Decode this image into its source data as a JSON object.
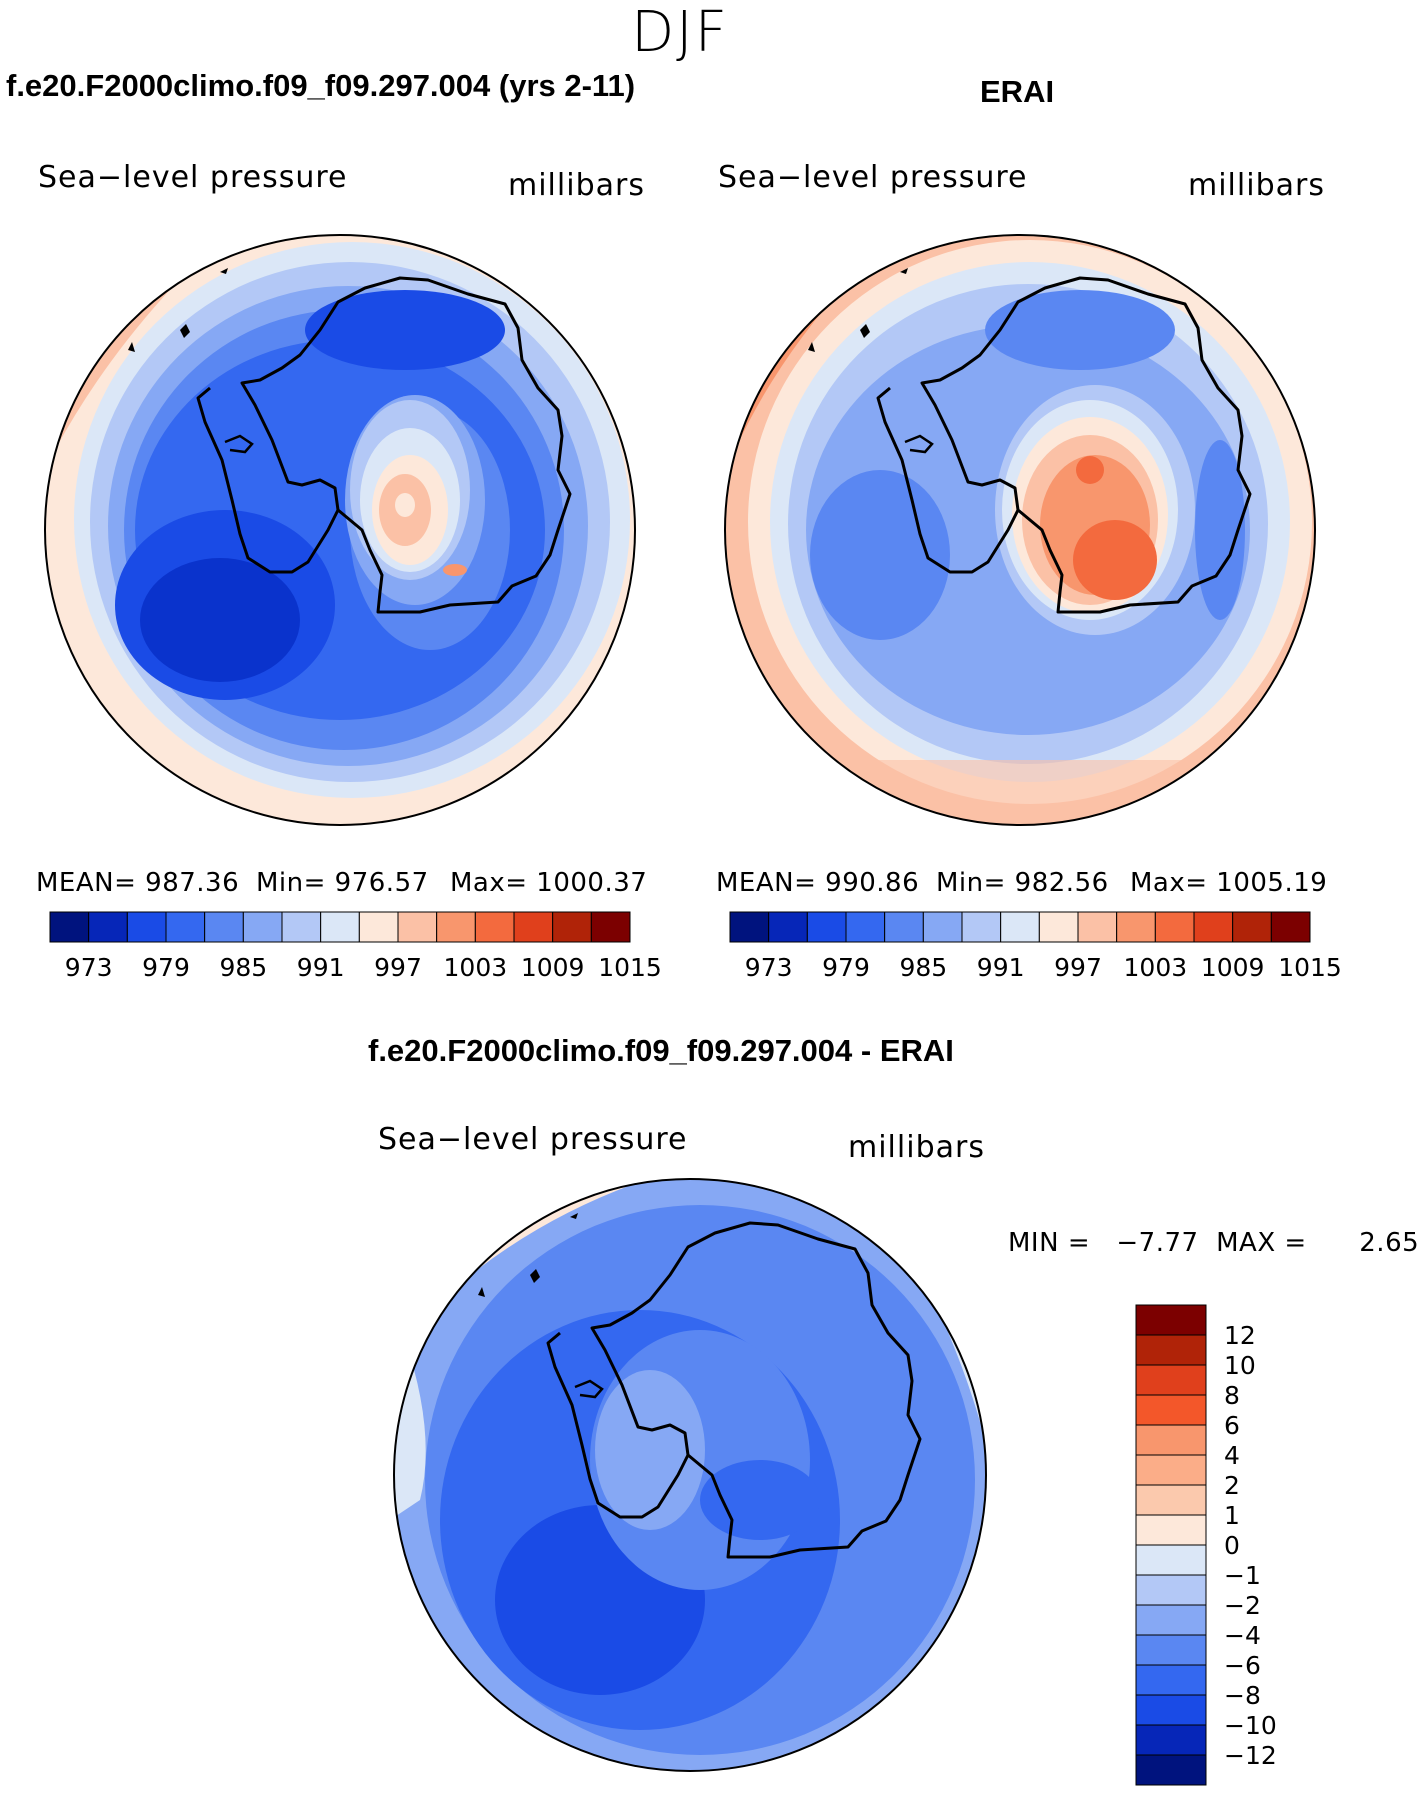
{
  "title": "DJF",
  "panels": [
    {
      "title": "f.e20.F2000climo.f09_f09.297.004 (yrs 2-11)",
      "variable": "Sea−level pressure",
      "units": "millibars",
      "stats": {
        "mean": "MEAN=  987.36",
        "min": "Min=  976.57",
        "max": "Max=  1000.37"
      }
    },
    {
      "title": "ERAI",
      "variable": "Sea−level pressure",
      "units": "millibars",
      "stats": {
        "mean": "MEAN=  990.86",
        "min": "Min=  982.56",
        "max": "Max=  1005.19"
      }
    },
    {
      "title": "f.e20.F2000climo.f09_f09.297.004 - ERAI",
      "variable": "Sea−level pressure",
      "units": "millibars",
      "stats": {
        "minmax": "MIN =   −7.77  MAX =      2.65"
      }
    }
  ],
  "colorbar_abs": {
    "ticks": [
      "973",
      "979",
      "985",
      "991",
      "997",
      "1003",
      "1009",
      "1015"
    ],
    "colors": [
      "#00137e",
      "#0626b8",
      "#1a4be6",
      "#3468f0",
      "#5a87f2",
      "#86a8f4",
      "#b3c8f6",
      "#dbe7f7",
      "#fde8da",
      "#fbc1a6",
      "#f8966d",
      "#f36a3e",
      "#e0401c",
      "#b02308",
      "#7c0000"
    ]
  },
  "colorbar_diff": {
    "labels": [
      "12",
      "10",
      "8",
      "6",
      "4",
      "2",
      "1",
      "0",
      "−1",
      "−2",
      "−4",
      "−6",
      "−8",
      "−10",
      "−12"
    ],
    "colors": [
      "#7c0000",
      "#b02308",
      "#e0401c",
      "#f3572a",
      "#f8966d",
      "#fbad88",
      "#fbc9ad",
      "#fde8da",
      "#dbe7f7",
      "#b3c8f6",
      "#86a8f4",
      "#5a87f2",
      "#3468f0",
      "#1a4be6",
      "#0626b8",
      "#00137e"
    ]
  }
}
